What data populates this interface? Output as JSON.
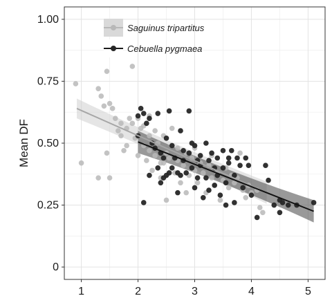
{
  "chart_data": {
    "type": "scatter",
    "title": "",
    "xlabel": "",
    "ylabel": "Mean DF",
    "xlim": [
      0.7,
      5.3
    ],
    "ylim": [
      -0.05,
      1.05
    ],
    "x_ticks": [
      "1",
      "2",
      "3",
      "4",
      "5"
    ],
    "y_ticks": [
      "0",
      "0.25",
      "0.50",
      "0.75",
      "1.00"
    ],
    "grid": true,
    "legend_position": "top-left",
    "series": [
      {
        "name": "Saguinus tripartitus",
        "color": "#b8b8b8",
        "band_color": "#cfcfcf",
        "fit": {
          "x": [
            0.92,
            4.27
          ],
          "y": [
            0.64,
            0.3
          ],
          "band": [
            0.04,
            0.025,
            0.045
          ]
        },
        "points": [
          [
            0.9,
            0.74
          ],
          [
            1.0,
            0.42
          ],
          [
            1.3,
            0.36
          ],
          [
            1.3,
            0.72
          ],
          [
            1.35,
            0.69
          ],
          [
            1.4,
            0.65
          ],
          [
            1.45,
            0.79
          ],
          [
            1.45,
            0.46
          ],
          [
            1.5,
            0.36
          ],
          [
            1.5,
            0.66
          ],
          [
            1.55,
            0.64
          ],
          [
            1.6,
            0.6
          ],
          [
            1.65,
            0.55
          ],
          [
            1.7,
            0.58
          ],
          [
            1.75,
            0.47
          ],
          [
            1.8,
            0.56
          ],
          [
            1.8,
            0.49
          ],
          [
            1.85,
            0.6
          ],
          [
            1.9,
            0.81
          ],
          [
            1.9,
            0.58
          ],
          [
            1.95,
            0.52
          ],
          [
            2.0,
            0.53
          ],
          [
            2.0,
            0.45
          ],
          [
            2.05,
            0.56
          ],
          [
            2.1,
            0.57
          ],
          [
            2.1,
            0.49
          ],
          [
            2.15,
            0.43
          ],
          [
            2.2,
            0.47
          ],
          [
            2.2,
            0.53
          ],
          [
            2.25,
            0.39
          ],
          [
            2.3,
            0.45
          ],
          [
            2.3,
            0.55
          ],
          [
            2.35,
            0.5
          ],
          [
            2.4,
            0.36
          ],
          [
            2.4,
            0.42
          ],
          [
            2.45,
            0.53
          ],
          [
            2.5,
            0.27
          ],
          [
            2.5,
            0.46
          ],
          [
            2.55,
            0.44
          ],
          [
            2.6,
            0.56
          ],
          [
            2.65,
            0.38
          ],
          [
            2.7,
            0.48
          ],
          [
            2.7,
            0.43
          ],
          [
            2.75,
            0.34
          ],
          [
            2.8,
            0.41
          ],
          [
            2.85,
            0.46
          ],
          [
            2.9,
            0.37
          ],
          [
            2.95,
            0.44
          ],
          [
            3.0,
            0.39
          ],
          [
            3.05,
            0.34
          ],
          [
            3.1,
            0.42
          ],
          [
            3.15,
            0.38
          ],
          [
            3.2,
            0.3
          ],
          [
            3.25,
            0.41
          ],
          [
            3.3,
            0.36
          ],
          [
            3.35,
            0.33
          ],
          [
            3.4,
            0.38
          ],
          [
            3.5,
            0.35
          ],
          [
            3.55,
            0.4
          ],
          [
            3.6,
            0.32
          ],
          [
            3.65,
            0.37
          ],
          [
            3.7,
            0.34
          ],
          [
            3.75,
            0.36
          ],
          [
            3.8,
            0.46
          ],
          [
            3.85,
            0.31
          ],
          [
            3.9,
            0.28
          ],
          [
            3.95,
            0.33
          ],
          [
            4.0,
            0.3
          ],
          [
            4.1,
            0.31
          ],
          [
            4.15,
            0.24
          ],
          [
            4.2,
            0.22
          ],
          [
            2.0,
            0.6
          ],
          [
            2.2,
            0.61
          ],
          [
            1.7,
            0.53
          ],
          [
            2.6,
            0.49
          ],
          [
            3.0,
            0.48
          ],
          [
            3.3,
            0.45
          ],
          [
            2.45,
            0.42
          ],
          [
            2.85,
            0.3
          ],
          [
            3.45,
            0.27
          ]
        ]
      },
      {
        "name": "Cebuella pygmaea",
        "color": "#262626",
        "band_color": "#555555",
        "fit": {
          "x": [
            2.0,
            5.1
          ],
          "y": [
            0.505,
            0.225
          ],
          "band": [
            0.045,
            0.02,
            0.045
          ]
        },
        "points": [
          [
            2.0,
            0.61
          ],
          [
            2.05,
            0.64
          ],
          [
            2.1,
            0.62
          ],
          [
            2.15,
            0.58
          ],
          [
            2.2,
            0.6
          ],
          [
            2.25,
            0.5
          ],
          [
            2.3,
            0.48
          ],
          [
            2.35,
            0.4
          ],
          [
            2.35,
            0.62
          ],
          [
            2.4,
            0.46
          ],
          [
            2.4,
            0.34
          ],
          [
            2.45,
            0.36
          ],
          [
            2.5,
            0.52
          ],
          [
            2.5,
            0.37
          ],
          [
            2.55,
            0.63
          ],
          [
            2.6,
            0.49
          ],
          [
            2.6,
            0.4
          ],
          [
            2.65,
            0.44
          ],
          [
            2.7,
            0.38
          ],
          [
            2.7,
            0.3
          ],
          [
            2.75,
            0.55
          ],
          [
            2.8,
            0.47
          ],
          [
            2.8,
            0.43
          ],
          [
            2.85,
            0.38
          ],
          [
            2.9,
            0.63
          ],
          [
            2.9,
            0.46
          ],
          [
            2.95,
            0.4
          ],
          [
            3.0,
            0.32
          ],
          [
            3.0,
            0.49
          ],
          [
            3.05,
            0.36
          ],
          [
            3.1,
            0.45
          ],
          [
            3.1,
            0.41
          ],
          [
            3.15,
            0.28
          ],
          [
            3.2,
            0.36
          ],
          [
            3.2,
            0.5
          ],
          [
            3.25,
            0.43
          ],
          [
            3.3,
            0.46
          ],
          [
            3.35,
            0.33
          ],
          [
            3.4,
            0.44
          ],
          [
            3.4,
            0.37
          ],
          [
            3.45,
            0.29
          ],
          [
            3.5,
            0.47
          ],
          [
            3.5,
            0.4
          ],
          [
            3.55,
            0.34
          ],
          [
            3.6,
            0.42
          ],
          [
            3.65,
            0.47
          ],
          [
            3.7,
            0.26
          ],
          [
            3.7,
            0.37
          ],
          [
            3.75,
            0.44
          ],
          [
            3.8,
            0.41
          ],
          [
            3.85,
            0.32
          ],
          [
            3.9,
            0.44
          ],
          [
            3.95,
            0.41
          ],
          [
            4.0,
            0.29
          ],
          [
            4.1,
            0.2
          ],
          [
            4.25,
            0.41
          ],
          [
            4.3,
            0.35
          ],
          [
            4.4,
            0.25
          ],
          [
            4.5,
            0.22
          ],
          [
            4.5,
            0.27
          ],
          [
            4.55,
            0.26
          ],
          [
            4.65,
            0.25
          ],
          [
            4.8,
            0.25
          ],
          [
            5.1,
            0.26
          ],
          [
            2.0,
            0.53
          ],
          [
            2.2,
            0.37
          ],
          [
            2.45,
            0.44
          ],
          [
            3.25,
            0.31
          ],
          [
            3.55,
            0.25
          ],
          [
            2.55,
            0.38
          ],
          [
            2.95,
            0.5
          ],
          [
            3.35,
            0.4
          ],
          [
            3.05,
            0.43
          ],
          [
            3.6,
            0.44
          ],
          [
            2.75,
            0.37
          ],
          [
            2.1,
            0.26
          ]
        ]
      }
    ]
  }
}
